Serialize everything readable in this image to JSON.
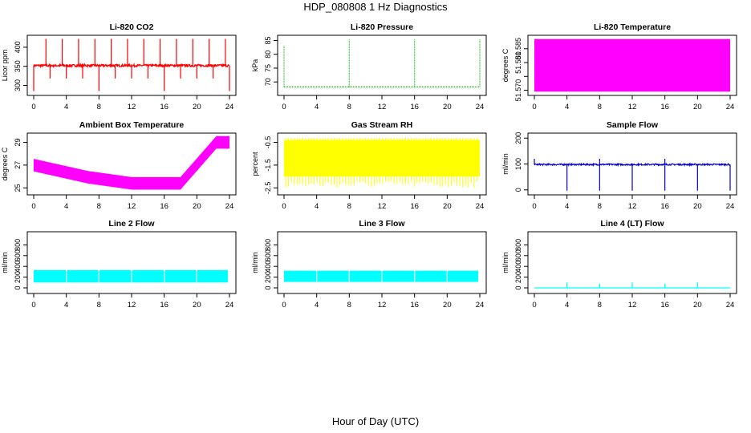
{
  "figure": {
    "title": "HDP_080808  1 Hz Diagnostics",
    "xlabel": "Hour of Day (UTC)"
  },
  "chart_data": [
    {
      "type": "line",
      "title": "Li-820 CO2",
      "ylabel": "Licor ppm",
      "color": "#ff0000",
      "xticks": [
        0,
        4,
        8,
        12,
        16,
        20,
        24
      ],
      "yticks": [
        300,
        350,
        400
      ],
      "ylim": [
        280,
        425
      ],
      "xlim": [
        0,
        24
      ],
      "series": [
        {
          "kind": "co2",
          "base": 352
        }
      ]
    },
    {
      "type": "line",
      "title": "Li-820 Pressure",
      "ylabel": "kPa",
      "color": "#00c000",
      "xticks": [
        0,
        4,
        8,
        12,
        16,
        20,
        24
      ],
      "yticks": [
        70,
        75,
        80,
        85
      ],
      "ylim": [
        66,
        86
      ],
      "xlim": [
        0,
        24
      ],
      "series": [
        {
          "kind": "pressure",
          "base": 68.2
        }
      ]
    },
    {
      "type": "area",
      "title": "Li-820 Temperature",
      "ylabel": "degrees C",
      "color": "#ff00ff",
      "xticks": [
        0,
        4,
        8,
        12,
        16,
        20,
        24
      ],
      "yticks": [
        51.57,
        51.575,
        51.58,
        51.585
      ],
      "ytick_labels": [
        "51.570",
        "",
        "51.580",
        "51.585"
      ],
      "ylim": [
        51.569,
        51.589
      ],
      "xlim": [
        0,
        24
      ],
      "series": [
        {
          "kind": "band",
          "low": 51.5695,
          "high": 51.5885
        }
      ]
    },
    {
      "type": "line",
      "title": "Ambient Box Temperature",
      "ylabel": "degrees C",
      "color": "#ff00ff",
      "xticks": [
        0,
        4,
        8,
        12,
        16,
        20,
        24
      ],
      "yticks": [
        25,
        27,
        29
      ],
      "ylim": [
        24.6,
        29.6
      ],
      "xlim": [
        0,
        24
      ],
      "series": [
        {
          "kind": "ambient"
        }
      ]
    },
    {
      "type": "line",
      "title": "Gas Stream RH",
      "ylabel": "percent",
      "color": "#ffff00",
      "xticks": [
        0,
        4,
        8,
        12,
        16,
        20,
        24
      ],
      "yticks": [
        -2.5,
        -1.5,
        -0.5
      ],
      "ylim": [
        -2.7,
        -0.2
      ],
      "xlim": [
        0,
        24
      ],
      "series": [
        {
          "kind": "rh",
          "base": -1.1
        }
      ]
    },
    {
      "type": "line",
      "title": "Sample Flow",
      "ylabel": "ml/min",
      "color": "#0000cc",
      "xticks": [
        0,
        4,
        8,
        12,
        16,
        20,
        24
      ],
      "yticks": [
        0,
        100,
        200
      ],
      "ylim": [
        -10,
        210
      ],
      "xlim": [
        0,
        24
      ],
      "series": [
        {
          "kind": "sampleflow",
          "base": 98
        }
      ]
    },
    {
      "type": "area",
      "title": "Line 2 Flow",
      "ylabel": "ml/min",
      "color": "#00ffff",
      "xticks": [
        0,
        4,
        8,
        12,
        16,
        20,
        24
      ],
      "yticks": [
        0,
        200,
        400,
        600,
        800
      ],
      "ylim": [
        -60,
        1000
      ],
      "xlim": [
        0,
        24
      ],
      "series": [
        {
          "kind": "lineflow",
          "low": 100,
          "high": 330,
          "gaps": [
            4,
            8,
            12,
            16,
            20
          ],
          "end": 23.8
        }
      ]
    },
    {
      "type": "area",
      "title": "Line 3 Flow",
      "ylabel": "ml/min",
      "color": "#00ffff",
      "xticks": [
        0,
        4,
        8,
        12,
        16,
        20,
        24
      ],
      "yticks": [
        0,
        200,
        400,
        600,
        800
      ],
      "ylim": [
        -60,
        1000
      ],
      "xlim": [
        0,
        24
      ],
      "series": [
        {
          "kind": "lineflow",
          "low": 110,
          "high": 320,
          "gaps": [
            4,
            8,
            12,
            16,
            20
          ],
          "end": 23.8
        }
      ]
    },
    {
      "type": "line",
      "title": "Line 4 (LT) Flow",
      "ylabel": "ml/min",
      "color": "#00ffff",
      "xticks": [
        0,
        4,
        8,
        12,
        16,
        20,
        24
      ],
      "yticks": [
        0,
        200,
        400,
        600,
        800
      ],
      "ylim": [
        -60,
        1000
      ],
      "xlim": [
        0,
        24
      ],
      "series": [
        {
          "kind": "lt",
          "base": 0,
          "spikes": [
            4,
            8,
            12,
            16,
            20
          ]
        }
      ]
    }
  ]
}
